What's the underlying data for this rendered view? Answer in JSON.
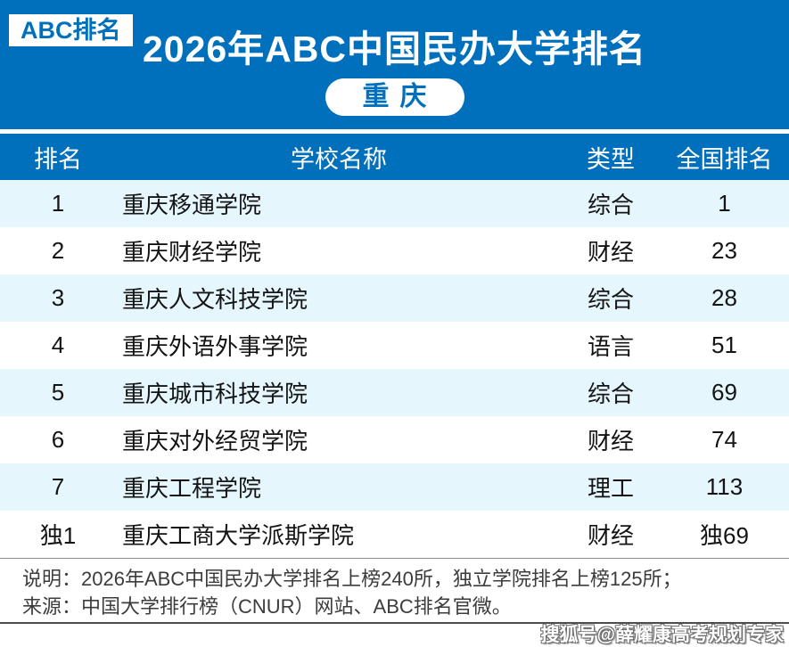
{
  "header": {
    "badge": "ABC排名",
    "title": "2026年ABC中国民办大学排名",
    "region_label": "重庆"
  },
  "table": {
    "headers": [
      "排名",
      "学校名称",
      "类型",
      "全国排名"
    ],
    "rows": [
      {
        "rank": "1",
        "school": "重庆移通学院",
        "type": "综合",
        "national_rank": "1"
      },
      {
        "rank": "2",
        "school": "重庆财经学院",
        "type": "财经",
        "national_rank": "23"
      },
      {
        "rank": "3",
        "school": "重庆人文科技学院",
        "type": "综合",
        "national_rank": "28"
      },
      {
        "rank": "4",
        "school": "重庆外语外事学院",
        "type": "语言",
        "national_rank": "51"
      },
      {
        "rank": "5",
        "school": "重庆城市科技学院",
        "type": "综合",
        "national_rank": "69"
      },
      {
        "rank": "6",
        "school": "重庆对外经贸学院",
        "type": "财经",
        "national_rank": "74"
      },
      {
        "rank": "7",
        "school": "重庆工程学院",
        "type": "理工",
        "national_rank": "113"
      },
      {
        "rank": "独1",
        "school": "重庆工商大学派斯学院",
        "type": "财经",
        "national_rank": "独69"
      }
    ]
  },
  "footer": {
    "note": "说明：2026年ABC中国民办大学排名上榜240所，独立学院排名上榜125所；",
    "source": "来源：中国大学排行榜（CNUR）网站、ABC排名官微。",
    "watermark": "搜狐号@薛耀康高考规划专家"
  },
  "colors": {
    "primary_blue": "#0170bc",
    "row_alt_blue": "#e6f6fd",
    "cell_text": "#141414",
    "footer_text": "#3c3c3c"
  },
  "chart_data": {
    "type": "table",
    "title": "2026年ABC中国民办大学排名",
    "subtitle": "重庆",
    "columns": [
      "排名",
      "学校名称",
      "类型",
      "全国排名"
    ],
    "rows": [
      [
        "1",
        "重庆移通学院",
        "综合",
        "1"
      ],
      [
        "2",
        "重庆财经学院",
        "财经",
        "23"
      ],
      [
        "3",
        "重庆人文科技学院",
        "综合",
        "28"
      ],
      [
        "4",
        "重庆外语外事学院",
        "语言",
        "51"
      ],
      [
        "5",
        "重庆城市科技学院",
        "综合",
        "69"
      ],
      [
        "6",
        "重庆对外经贸学院",
        "财经",
        "74"
      ],
      [
        "7",
        "重庆工程学院",
        "理工",
        "113"
      ],
      [
        "独1",
        "重庆工商大学派斯学院",
        "财经",
        "独69"
      ]
    ],
    "notes": [
      "说明：2026年ABC中国民办大学排名上榜240所，独立学院排名上榜125所；",
      "来源：中国大学排行榜（CNUR）网站、ABC排名官微。"
    ]
  }
}
